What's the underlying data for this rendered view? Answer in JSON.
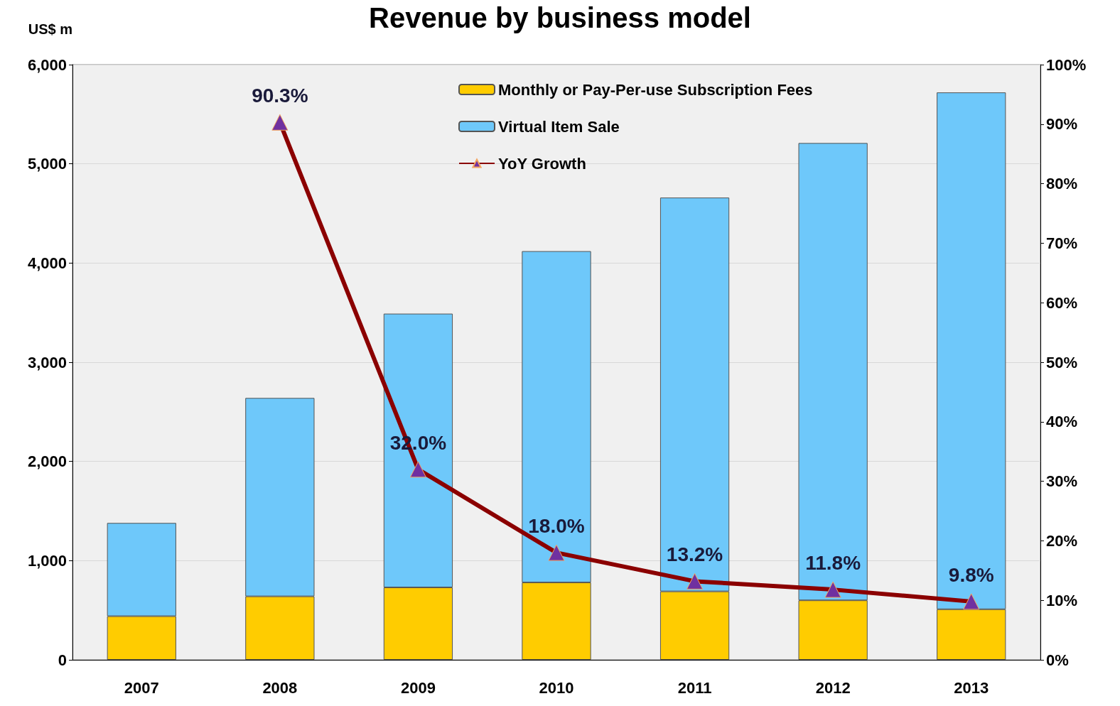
{
  "chart_data": {
    "type": "bar",
    "title": "Revenue by business model",
    "ylabel": "US$ m",
    "categories": [
      "2007",
      "2008",
      "2009",
      "2010",
      "2011",
      "2012",
      "2013"
    ],
    "stacked": true,
    "series": [
      {
        "name": "Monthly or Pay-Per-use Subscription Fees",
        "color": "#ffcc00",
        "values": [
          440,
          640,
          730,
          780,
          690,
          600,
          510
        ]
      },
      {
        "name": "Virtual Item Sale",
        "color": "#6ec8fa",
        "values": [
          940,
          2000,
          2760,
          3340,
          3970,
          4610,
          5210
        ]
      },
      {
        "name": "YoY Growth",
        "type": "line",
        "axis": "y2",
        "color": "#8b0000",
        "marker": "triangle",
        "values": [
          null,
          90.3,
          32.0,
          18.0,
          13.2,
          11.8,
          9.8
        ],
        "value_labels": [
          null,
          "90.3%",
          "32.0%",
          "18.0%",
          "13.2%",
          "11.8%",
          "9.8%"
        ]
      }
    ],
    "ylim": [
      0,
      6000
    ],
    "yticks": [
      {
        "value": 0,
        "label": "0"
      },
      {
        "value": 1000,
        "label": "1,000"
      },
      {
        "value": 2000,
        "label": "2,000"
      },
      {
        "value": 3000,
        "label": "3,000"
      },
      {
        "value": 4000,
        "label": "4,000"
      },
      {
        "value": 5000,
        "label": "5,000"
      },
      {
        "value": 6000,
        "label": "6,000"
      }
    ],
    "y2lim": [
      0,
      100
    ],
    "y2ticks": [
      {
        "value": 0,
        "label": "0%"
      },
      {
        "value": 10,
        "label": "10%"
      },
      {
        "value": 20,
        "label": "20%"
      },
      {
        "value": 30,
        "label": "30%"
      },
      {
        "value": 40,
        "label": "40%"
      },
      {
        "value": 50,
        "label": "50%"
      },
      {
        "value": 60,
        "label": "60%"
      },
      {
        "value": 70,
        "label": "70%"
      },
      {
        "value": 80,
        "label": "80%"
      },
      {
        "value": 90,
        "label": "90%"
      },
      {
        "value": 100,
        "label": "100%"
      }
    ],
    "grid": "y",
    "legend": "top"
  }
}
